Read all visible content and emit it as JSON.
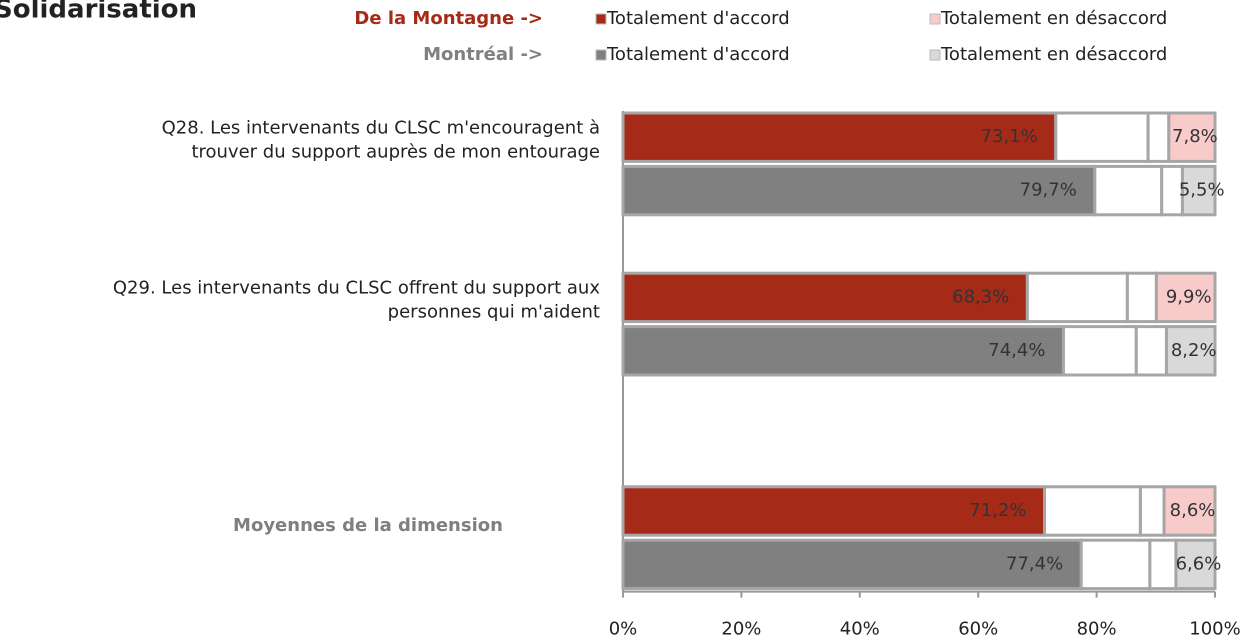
{
  "chart_data": {
    "type": "stacked-bar-horizontal",
    "title": "Solidarisation",
    "categories": [
      [
        "Q28. Les intervenants du CLSC m'encouragent à",
        "trouver du support auprès de mon entourage"
      ],
      [
        "Q29. Les intervenants du CLSC offrent du support aux",
        "personnes qui m'aident"
      ],
      [
        "Moyennes de la dimension"
      ]
    ],
    "groups": [
      {
        "name": "De la Montagne ->",
        "series": [
          {
            "name": "Totalement d'accord",
            "color": "#a52a17",
            "values": [
              73.1,
              68.3,
              71.2
            ],
            "value_labels": [
              "73,1%",
              "68,3%",
              "71,2%"
            ]
          },
          {
            "color": "#ffffff",
            "values": [
              15.6,
              16.9,
              16.2
            ]
          },
          {
            "color": "#ffffff",
            "values": [
              3.5,
              4.9,
              4.0
            ]
          },
          {
            "name": "Totalement en désaccord",
            "color": "#f8cbcb",
            "values": [
              7.8,
              9.9,
              8.6
            ],
            "value_labels": [
              "7,8%",
              "9,9%",
              "8,6%"
            ]
          }
        ]
      },
      {
        "name": "Montréal ->",
        "series": [
          {
            "name": "Totalement d'accord",
            "color": "#808080",
            "values": [
              79.7,
              74.4,
              77.4
            ],
            "value_labels": [
              "79,7%",
              "74,4%",
              "77,4%"
            ]
          },
          {
            "color": "#ffffff",
            "values": [
              11.3,
              12.3,
              11.6
            ]
          },
          {
            "color": "#ffffff",
            "values": [
              3.5,
              5.1,
              4.4
            ]
          },
          {
            "name": "Totalement en désaccord",
            "color": "#d9d9d9",
            "values": [
              5.5,
              8.2,
              6.6
            ],
            "value_labels": [
              "5,5%",
              "8,2%",
              "6,6%"
            ]
          }
        ]
      }
    ],
    "xlim": [
      0,
      100
    ],
    "xticks": [
      {
        "value": 0,
        "label": "0%"
      },
      {
        "value": 20,
        "label": "20%"
      },
      {
        "value": 40,
        "label": "40%"
      },
      {
        "value": 60,
        "label": "60%"
      },
      {
        "value": 80,
        "label": "80%"
      },
      {
        "value": 100,
        "label": "100%"
      }
    ]
  }
}
